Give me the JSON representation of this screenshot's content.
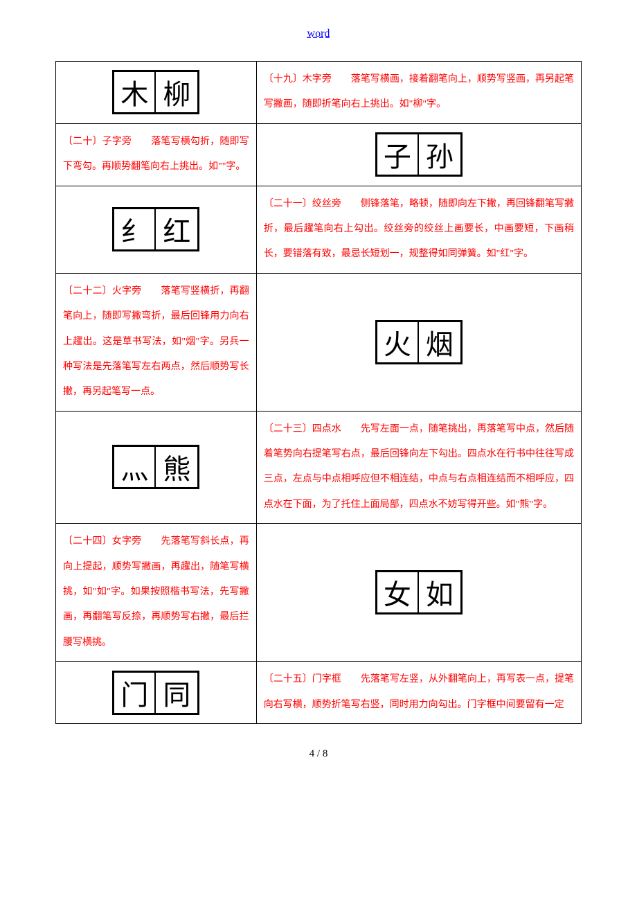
{
  "header": {
    "link_text": "word"
  },
  "rows": [
    {
      "layout": "img-left",
      "chars": [
        "木",
        "柳"
      ],
      "label": "〔十九〕木字旁",
      "body": "落笔写横画，接着翻笔向上，顺势写竖画，再另起笔写撇画，随即折笔向右上挑出。如\"柳\"字。"
    },
    {
      "layout": "text-left",
      "chars": [
        "子",
        "孙"
      ],
      "label": "〔二十〕子字旁",
      "body": "落笔写横勾折，随即写下弯勾。再顺势翻笔向右上挑出。如\"\"字。"
    },
    {
      "layout": "img-left",
      "chars": [
        "纟",
        "红"
      ],
      "label": "〔二十一〕绞丝旁",
      "body": "侧锋落笔，略顿，随即向左下撇，再回锋翻笔写撇折，最后趯笔向右上勾出。绞丝旁的绞丝上画要长，中画要短，下画稍长，要错落有致，最忌长短划一，规整得如同弹簧。如\"红\"字。"
    },
    {
      "layout": "text-left",
      "chars": [
        "火",
        "烟"
      ],
      "label": "〔二十二〕火字旁",
      "body": "落笔写竖横折，再翻笔向上，随即写撇弯折，最后回锋用力向右上趯出。这是草书写法，如\"烟\"字。另兵一种写法是先落笔写左右两点，然后顺势写长撇，再另起笔写一点。"
    },
    {
      "layout": "img-left",
      "chars": [
        "灬",
        "熊"
      ],
      "label": "〔二十三〕四点水",
      "body": "先写左面一点，随笔挑出，再落笔写中点，然后随着笔势向右提笔写右点，最后回锋向左下勾出。四点水在行书中往往写成三点，左点与中点相呼应但不相连结，中点与右点相连结而不相呼应，四点水在下面，为了托住上面局部，四点水不妨写得开些。如\"熊\"字。"
    },
    {
      "layout": "text-left",
      "chars": [
        "女",
        "如"
      ],
      "label": "〔二十四〕女字旁",
      "body": "先落笔写斜长点，再向上提起，顺势写撇画，再趯出，随笔写横挑，如\"如\"字。如果按照楷书写法，先写撇画，再翻笔写反捺，再顺势写右撇，最后拦腰写横挑。"
    },
    {
      "layout": "img-left",
      "chars": [
        "门",
        "同"
      ],
      "label": "〔二十五〕门字框",
      "body": "先落笔写左竖，从外翻笔向上，再写表一点，提笔向右写横，顺势折笔写右竖，同时用力向勾出。门字框中间要留有一定"
    }
  ],
  "footer": {
    "page_current": "4",
    "page_sep": " / ",
    "page_total": "8"
  },
  "style": {
    "text_color": "#ff0000",
    "link_color": "#0000ff",
    "border_color": "#000000",
    "background": "#ffffff"
  }
}
